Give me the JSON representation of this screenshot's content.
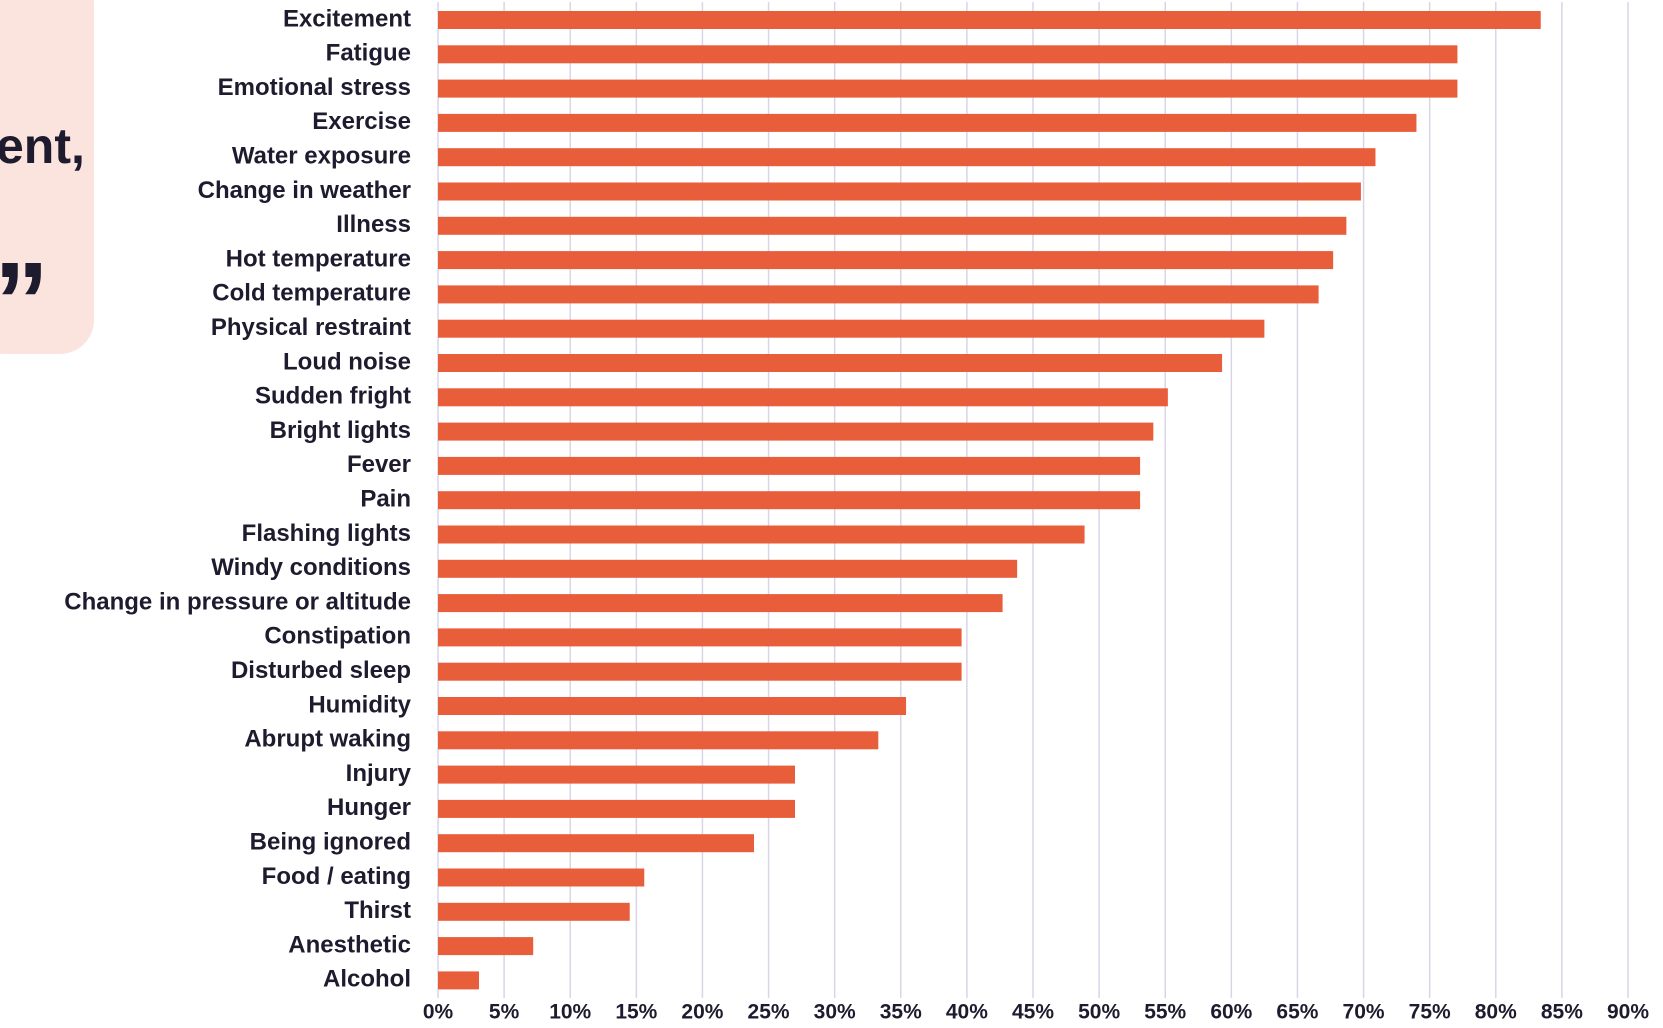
{
  "callout": {
    "lines": [
      "ent,",
      "”"
    ]
  },
  "chart_data": {
    "type": "bar",
    "orientation": "horizontal",
    "categories": [
      "Excitement",
      "Fatigue",
      "Emotional stress",
      "Exercise",
      "Water exposure",
      "Change in weather",
      "Illness",
      "Hot temperature",
      "Cold temperature",
      "Physical restraint",
      "Loud noise",
      "Sudden fright",
      "Bright lights",
      "Fever",
      "Pain",
      "Flashing lights",
      "Windy conditions",
      "Change in pressure or altitude",
      "Constipation",
      "Disturbed sleep",
      "Humidity",
      "Abrupt waking",
      "Injury",
      "Hunger",
      "Being ignored",
      "Food / eating",
      "Thirst",
      "Anesthetic",
      "Alcohol"
    ],
    "values": [
      83.4,
      77.1,
      77.1,
      74.0,
      70.9,
      69.8,
      68.7,
      67.7,
      66.6,
      62.5,
      59.3,
      55.2,
      54.1,
      53.1,
      53.1,
      48.9,
      43.8,
      42.7,
      39.6,
      39.6,
      35.4,
      33.3,
      27.0,
      27.0,
      23.9,
      15.6,
      14.5,
      7.2,
      3.1
    ],
    "color": "#e85d3a",
    "xlim": [
      0,
      90
    ],
    "xticks": [
      {
        "value": 0,
        "label": "0%"
      },
      {
        "value": 5,
        "label": "5%"
      },
      {
        "value": 10,
        "label": "10%"
      },
      {
        "value": 15,
        "label": "15%"
      },
      {
        "value": 20,
        "label": "20%"
      },
      {
        "value": 25,
        "label": "25%"
      },
      {
        "value": 30,
        "label": "30%"
      },
      {
        "value": 35,
        "label": "35%"
      },
      {
        "value": 40,
        "label": "40%"
      },
      {
        "value": 45,
        "label": "45%"
      },
      {
        "value": 50,
        "label": "50%"
      },
      {
        "value": 55,
        "label": "55%"
      },
      {
        "value": 60,
        "label": "60%"
      },
      {
        "value": 65,
        "label": "65%"
      },
      {
        "value": 70,
        "label": "70%"
      },
      {
        "value": 75,
        "label": "75%"
      },
      {
        "value": 80,
        "label": "80%"
      },
      {
        "value": 85,
        "label": "85%"
      },
      {
        "value": 90,
        "label": "90%"
      }
    ],
    "grid": true
  }
}
